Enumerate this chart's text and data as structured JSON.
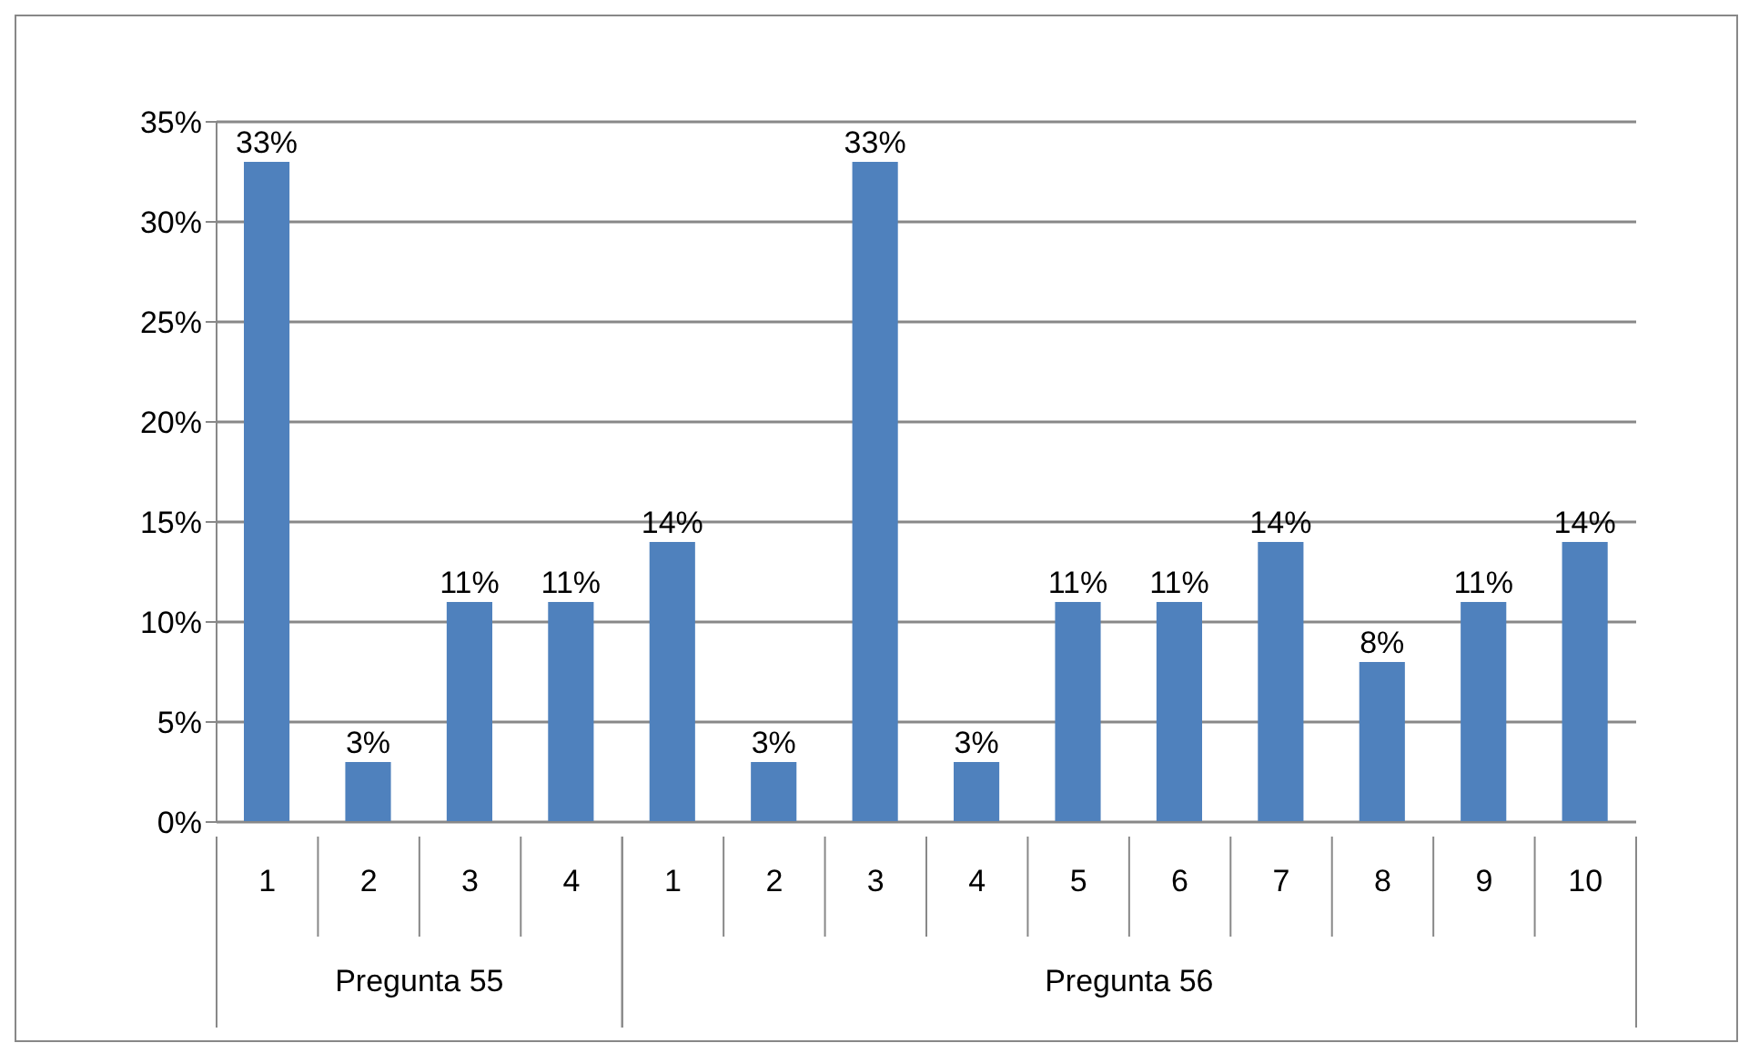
{
  "chart_data": {
    "type": "bar",
    "categories": [
      "1",
      "2",
      "3",
      "4",
      "1",
      "2",
      "3",
      "4",
      "5",
      "6",
      "7",
      "8",
      "9",
      "10"
    ],
    "values": [
      33,
      3,
      11,
      11,
      14,
      3,
      33,
      3,
      11,
      11,
      14,
      8,
      11,
      14
    ],
    "value_labels": [
      "33%",
      "3%",
      "11%",
      "11%",
      "14%",
      "3%",
      "33%",
      "3%",
      "11%",
      "11%",
      "14%",
      "8%",
      "11%",
      "14%"
    ],
    "color": "#4f81bd",
    "annotations": [
      "Pregunta 55",
      "Pregunta 56"
    ],
    "ylim": [
      0,
      35
    ],
    "yticks": [
      {
        "value": 0,
        "label": "0%"
      },
      {
        "value": 5,
        "label": "5%"
      },
      {
        "value": 10,
        "label": "10%"
      },
      {
        "value": 15,
        "label": "15%"
      },
      {
        "value": 20,
        "label": "20%"
      },
      {
        "value": 25,
        "label": "25%"
      },
      {
        "value": 30,
        "label": "30%"
      },
      {
        "value": 35,
        "label": "35%"
      }
    ],
    "grid": "y",
    "legend": false
  }
}
